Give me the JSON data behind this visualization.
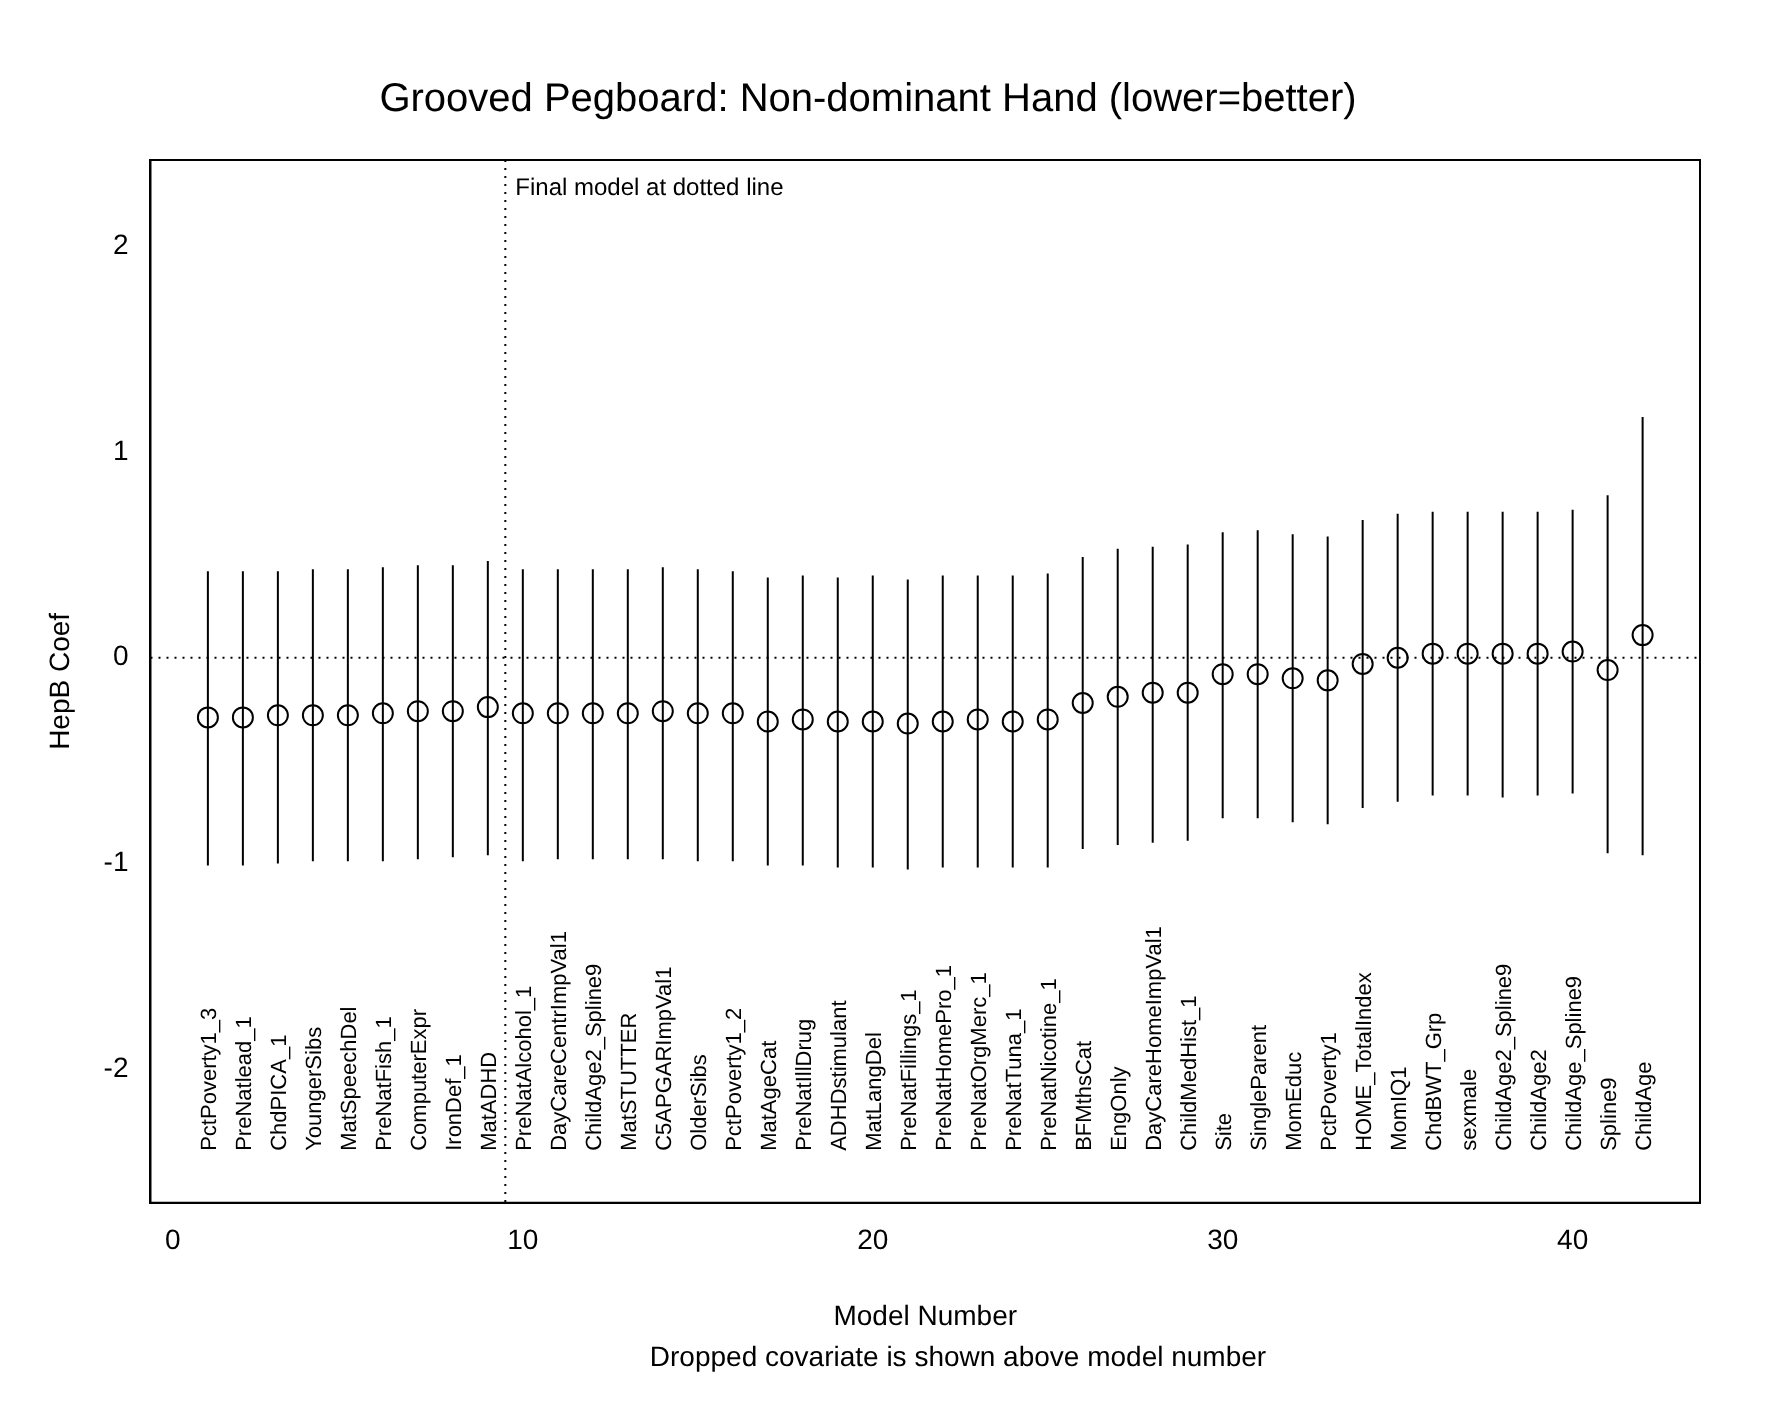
{
  "chart_data": {
    "type": "scatter",
    "title": "Grooved Pegboard: Non-dominant Hand (lower=better)",
    "xlabel": "Model Number",
    "ylabel": "HepB Coef",
    "x": [
      1,
      2,
      3,
      4,
      5,
      6,
      7,
      8,
      9,
      10,
      11,
      12,
      13,
      14,
      15,
      16,
      17,
      18,
      19,
      20,
      21,
      22,
      23,
      24,
      25,
      26,
      27,
      28,
      29,
      30,
      31,
      32,
      33,
      34,
      35,
      36,
      37,
      38,
      39,
      40,
      41,
      42
    ],
    "values": [
      -0.29,
      -0.29,
      -0.28,
      -0.28,
      -0.28,
      -0.27,
      -0.26,
      -0.26,
      -0.24,
      -0.27,
      -0.27,
      -0.27,
      -0.27,
      -0.26,
      -0.27,
      -0.27,
      -0.31,
      -0.3,
      -0.31,
      -0.31,
      -0.32,
      -0.31,
      -0.3,
      -0.31,
      -0.3,
      -0.22,
      -0.19,
      -0.17,
      -0.17,
      -0.08,
      -0.08,
      -0.1,
      -0.11,
      -0.03,
      0.0,
      0.02,
      0.02,
      0.02,
      0.02,
      0.03,
      -0.06,
      0.11
    ],
    "errors": [
      [
        -1.01,
        0.42
      ],
      [
        -1.01,
        0.42
      ],
      [
        -1.0,
        0.42
      ],
      [
        -0.99,
        0.43
      ],
      [
        -0.99,
        0.43
      ],
      [
        -0.99,
        0.44
      ],
      [
        -0.98,
        0.45
      ],
      [
        -0.97,
        0.45
      ],
      [
        -0.96,
        0.47
      ],
      [
        -0.99,
        0.43
      ],
      [
        -0.98,
        0.43
      ],
      [
        -0.98,
        0.43
      ],
      [
        -0.98,
        0.43
      ],
      [
        -0.98,
        0.44
      ],
      [
        -0.99,
        0.43
      ],
      [
        -0.99,
        0.42
      ],
      [
        -1.01,
        0.39
      ],
      [
        -1.01,
        0.4
      ],
      [
        -1.02,
        0.39
      ],
      [
        -1.02,
        0.4
      ],
      [
        -1.03,
        0.38
      ],
      [
        -1.02,
        0.4
      ],
      [
        -1.02,
        0.4
      ],
      [
        -1.02,
        0.4
      ],
      [
        -1.02,
        0.41
      ],
      [
        -0.93,
        0.49
      ],
      [
        -0.91,
        0.53
      ],
      [
        -0.9,
        0.54
      ],
      [
        -0.89,
        0.55
      ],
      [
        -0.78,
        0.61
      ],
      [
        -0.78,
        0.62
      ],
      [
        -0.8,
        0.6
      ],
      [
        -0.81,
        0.59
      ],
      [
        -0.73,
        0.67
      ],
      [
        -0.7,
        0.7
      ],
      [
        -0.67,
        0.71
      ],
      [
        -0.67,
        0.71
      ],
      [
        -0.68,
        0.71
      ],
      [
        -0.67,
        0.71
      ],
      [
        -0.66,
        0.72
      ],
      [
        -0.95,
        0.79
      ],
      [
        -0.96,
        1.17
      ]
    ],
    "color": "#000000",
    "marker": "circle",
    "grid": false,
    "legend": false,
    "xlim": [
      -0.64,
      43.64
    ],
    "ylim": [
      -2.65,
      2.42
    ],
    "xticks": [
      0,
      10,
      20,
      30,
      40
    ],
    "yticks": [
      -2,
      -1,
      0,
      1,
      2
    ],
    "ref_lines": [
      {
        "axis": "x",
        "value": 9.5,
        "label": "Final model at dotted line",
        "line_style": "dotted"
      },
      {
        "axis": "y",
        "value": 0,
        "line_style": "dotted"
      }
    ],
    "annotations": [
      "PctPoverty1_3",
      "PreNatlead_1",
      "ChdPICA_1",
      "YoungerSibs",
      "MatSpeechDel",
      "PreNatFish_1",
      "ComputerExpr",
      "IronDef_1",
      "MatADHD",
      "PreNatAlcohol_1",
      "DayCareCentrImpVal1",
      "ChildAge2_Spline9",
      "MatSTUTTER",
      "C5APGARImpVal1",
      "OlderSibs",
      "PctPoverty1_2",
      "MatAgeCat",
      "PreNatIllDrug",
      "ADHDstimulant",
      "MatLangDel",
      "PreNatFillings_1",
      "PreNatHomePro_1",
      "PreNatOrgMerc_1",
      "PreNatTuna_1",
      "PreNatNicotine_1",
      "BFMthsCat",
      "EngOnly",
      "DayCareHomeImpVal1",
      "ChildMedHist_1",
      "Site",
      "SingleParent",
      "MomEduc",
      "PctPoverty1",
      "HOME_TotalIndex",
      "MomIQ1",
      "ChdBWT_Grp",
      "sexmale",
      "ChildAge2_Spline9",
      "ChildAge2",
      "ChildAge_Spline9",
      "Spline9",
      "ChildAge",
      "Dropped covariate is shown above model number"
    ]
  }
}
